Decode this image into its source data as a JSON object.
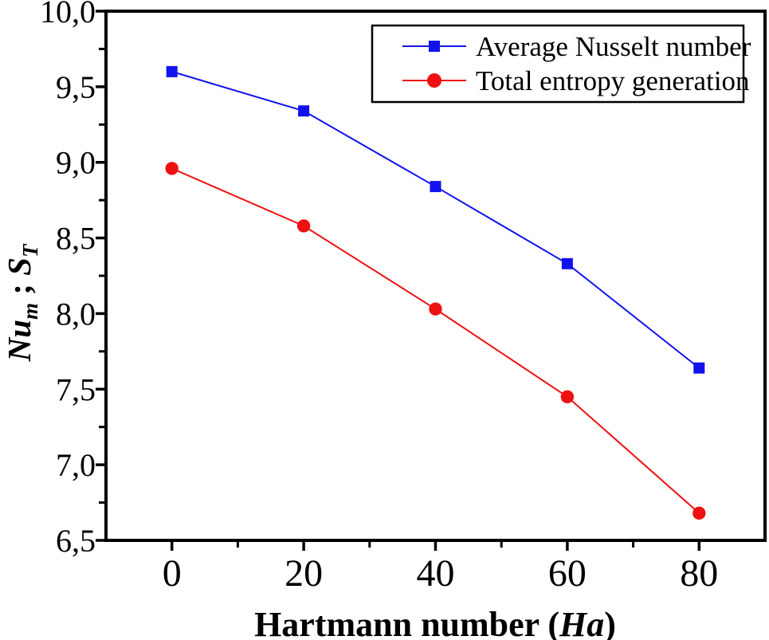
{
  "figure": {
    "background": "#ffffff",
    "frame_color": "#000000",
    "text_color": "#000000"
  },
  "chart_data": {
    "type": "line",
    "title": "",
    "xlabel": "Hartmann number (Ha)",
    "xlabel_parts": {
      "prefix": "Hartmann number (",
      "italic": "Ha",
      "suffix": ")"
    },
    "ylabel": "Nu_m ; S_T",
    "ylabel_parts": {
      "main1": "Nu",
      "sub1": "m",
      "separator": " ; ",
      "main2": "S",
      "sub2": "T"
    },
    "x": [
      0,
      20,
      40,
      60,
      80
    ],
    "x_tick_labels": [
      "0",
      "20",
      "40",
      "60",
      "80"
    ],
    "x_minor_ticks": [
      10,
      30,
      50,
      70
    ],
    "y_major_ticks": [
      6.5,
      7.0,
      7.5,
      8.0,
      8.5,
      9.0,
      9.5,
      10.0
    ],
    "y_tick_labels": [
      "6,5",
      "7,0",
      "7,5",
      "8,0",
      "8,5",
      "9,0",
      "9,5",
      "10,0"
    ],
    "y_minor_ticks": [
      6.75,
      7.25,
      7.75,
      8.25,
      8.75,
      9.25,
      9.75
    ],
    "xlim": [
      -10,
      90
    ],
    "ylim": [
      6.5,
      10.0
    ],
    "grid": false,
    "decimal_separator": ",",
    "legend_position": "top-right",
    "series": [
      {
        "name": "Average Nusselt number",
        "color": "#1212ee",
        "marker": "square",
        "values": [
          9.6,
          9.34,
          8.84,
          8.33,
          7.64
        ]
      },
      {
        "name": "Total entropy generation",
        "color": "#ee1111",
        "marker": "circle",
        "values": [
          8.96,
          8.58,
          8.03,
          7.45,
          6.68
        ]
      }
    ]
  }
}
